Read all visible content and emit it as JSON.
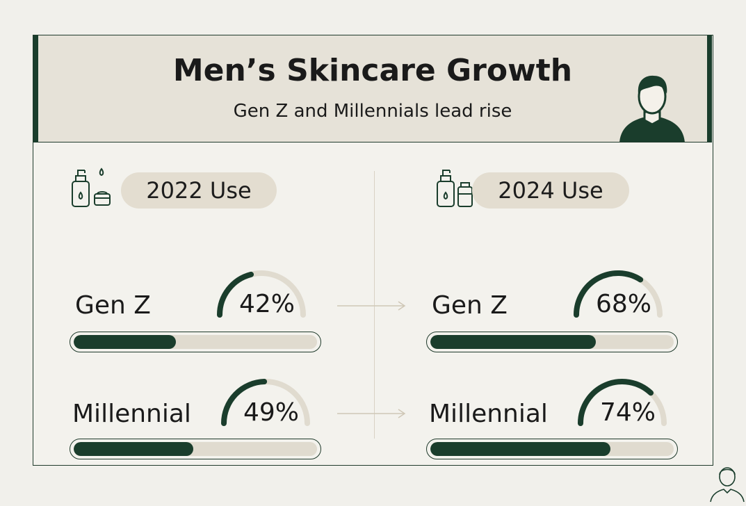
{
  "chart_data": {
    "type": "bar",
    "title": "Men’s Skincare Growth",
    "subtitle": "Gen Z and Millennials lead rise",
    "unit": "%",
    "ylim": [
      0,
      100
    ],
    "categories": [
      "Gen Z",
      "Millennial"
    ],
    "series": [
      {
        "name": "2022 Use",
        "values": [
          42,
          49
        ]
      },
      {
        "name": "2024 Use",
        "values": [
          68,
          74
        ]
      }
    ],
    "labels": [
      [
        "42%",
        "49%"
      ],
      [
        "68%",
        "74%"
      ]
    ]
  },
  "colors": {
    "accent": "#1a3d2c",
    "track": "#e0dbcf",
    "pill": "#e3ddd0",
    "header": "#e6e2d8"
  },
  "icons": {
    "header": "person-icon",
    "columns": "skincare-bottle-icon",
    "connector": "arrow-right-icon",
    "corner": "person-outline-icon"
  }
}
